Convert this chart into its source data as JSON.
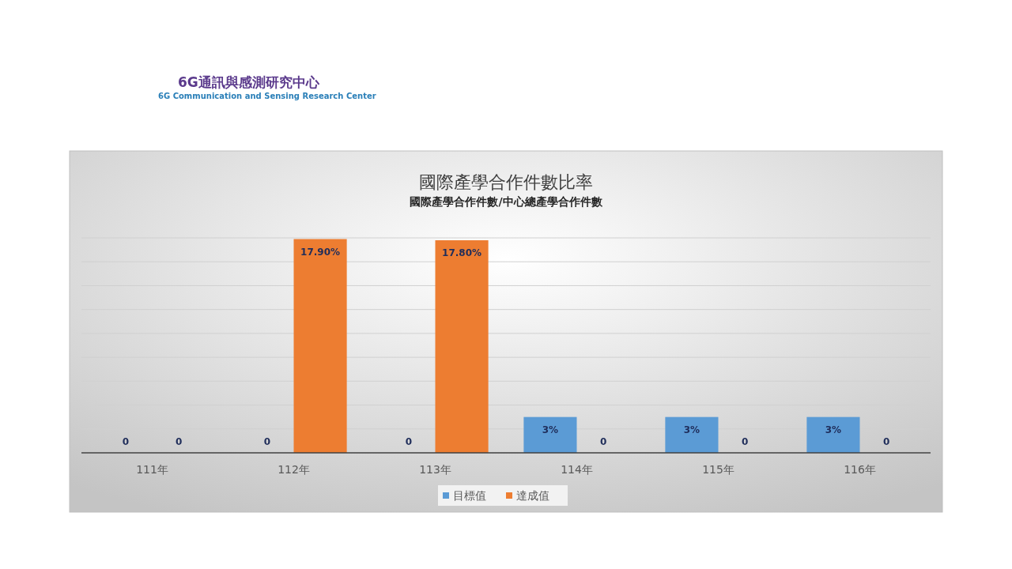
{
  "chart_data": {
    "type": "bar",
    "title": "國際產學合作件數比率",
    "subtitle": "國際產學合作件數/中心總產學合作件數",
    "annotations": [
      "6G通訊與感測研究中心",
      "6G Communication and Sensing Research Center",
      {
        "text": "0",
        "x": "111年",
        "y": 0
      },
      {
        "text": "0",
        "x": "111年",
        "y": 0
      },
      {
        "text": "0",
        "x": "112年",
        "y": 0
      },
      {
        "text": "0",
        "x": "113年",
        "y": 0
      },
      {
        "text": "0",
        "x": "114年",
        "y": 0
      },
      {
        "text": "0",
        "x": "115年",
        "y": 0
      },
      {
        "text": "0",
        "x": "116年",
        "y": 0
      }
    ],
    "categories": [
      "111年",
      "112年",
      "113年",
      "114年",
      "115年",
      "116年"
    ],
    "series": [
      {
        "name": "目標值",
        "color": "#5b9bd5",
        "values": [
          0,
          0,
          0,
          3,
          3,
          3
        ],
        "value_labels": [
          null,
          null,
          null,
          "3%",
          "3%",
          "3%"
        ]
      },
      {
        "name": "達成值",
        "color": "#ed7d31",
        "values": [
          0,
          17.9,
          17.8,
          0,
          0,
          0
        ],
        "value_labels": [
          null,
          "17.90%",
          "17.80%",
          null,
          null,
          null
        ]
      }
    ],
    "ylim": [
      0,
      18
    ],
    "yticks": [
      {
        "value": 0,
        "label": null
      },
      {
        "value": 2,
        "label": null
      },
      {
        "value": 4,
        "label": null
      },
      {
        "value": 6,
        "label": null
      },
      {
        "value": 8,
        "label": null
      },
      {
        "value": 10,
        "label": null
      },
      {
        "value": 12,
        "label": null
      },
      {
        "value": 14,
        "label": null
      },
      {
        "value": 16,
        "label": null
      },
      {
        "value": 18,
        "label": null
      }
    ],
    "tick_labels": "x",
    "grid": "y",
    "legend": "bottom"
  }
}
